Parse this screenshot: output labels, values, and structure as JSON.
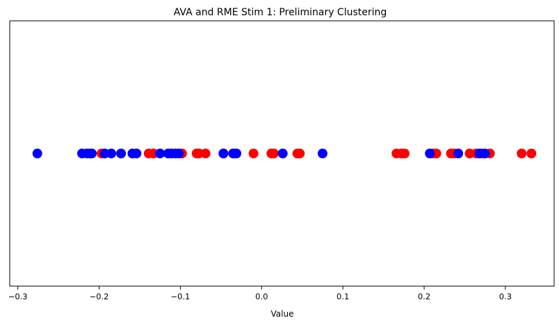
{
  "chart_data": {
    "type": "scatter",
    "title": "AVA and RME Stim 1: Preliminary Clustering",
    "xlabel": "Value",
    "ylabel": "",
    "xlim": [
      -0.31,
      0.36
    ],
    "xticks": [
      -0.3,
      -0.2,
      -0.1,
      0.0,
      0.1,
      0.2,
      0.3
    ],
    "xtick_labels": [
      "−0.3",
      "−0.2",
      "−0.1",
      "0.0",
      "0.1",
      "0.2",
      "0.3"
    ],
    "grid": false,
    "legend": "none",
    "series": [
      {
        "color": "#ff0000",
        "y": 0,
        "x": [
          -0.197,
          -0.139,
          -0.133,
          -0.098,
          -0.08,
          -0.077,
          -0.069,
          -0.047,
          -0.035,
          -0.01,
          0.012,
          0.015,
          0.044,
          0.047,
          0.166,
          0.172,
          0.176,
          0.211,
          0.215,
          0.233,
          0.237,
          0.256,
          0.264,
          0.271,
          0.281,
          0.32,
          0.332
        ]
      },
      {
        "color": "#0000ff",
        "y": 0,
        "x": [
          -0.276,
          -0.221,
          -0.215,
          -0.211,
          -0.209,
          -0.193,
          -0.185,
          -0.173,
          -0.159,
          -0.154,
          -0.125,
          -0.115,
          -0.111,
          -0.106,
          -0.102,
          -0.047,
          -0.035,
          -0.031,
          0.026,
          0.075,
          0.207,
          0.242,
          0.268,
          0.275
        ]
      }
    ]
  }
}
